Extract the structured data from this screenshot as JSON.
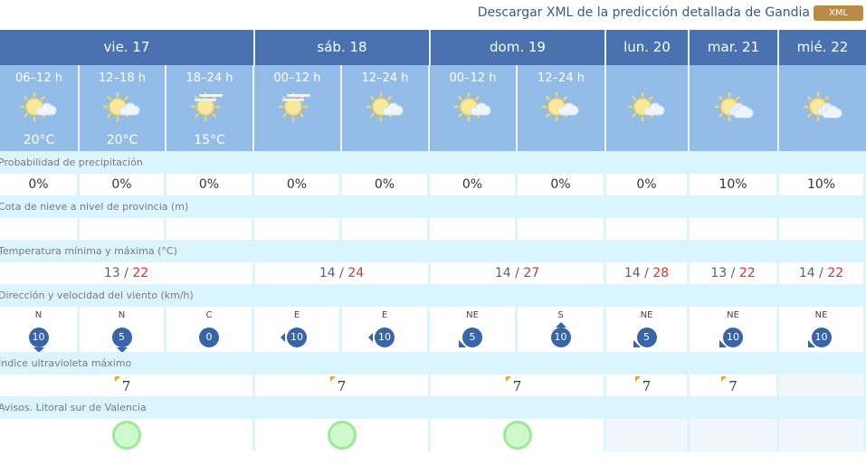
{
  "header": {
    "download_text": "Descargar XML de la predicción detallada de Gandia",
    "xml_button": "XML"
  },
  "days": [
    {
      "label": "vie. 17"
    },
    {
      "label": "sáb. 18"
    },
    {
      "label": "dom. 19"
    },
    {
      "label": "lun. 20"
    },
    {
      "label": "mar. 21"
    },
    {
      "label": "mié. 22"
    }
  ],
  "periods": [
    {
      "time": "06–12 h",
      "icon": "sun-cloud-icon",
      "temp": "20°C"
    },
    {
      "time": "12–18 h",
      "icon": "sun-cloud-icon",
      "temp": "20°C"
    },
    {
      "time": "18–24 h",
      "icon": "sun-haze-icon",
      "temp": "15°C"
    },
    {
      "time": "00–12 h",
      "icon": "sun-haze-icon",
      "temp": ""
    },
    {
      "time": "12–24 h",
      "icon": "sun-cloud-icon",
      "temp": ""
    },
    {
      "time": "00–12 h",
      "icon": "sun-cloud-icon",
      "temp": ""
    },
    {
      "time": "12–24 h",
      "icon": "sun-cloud-icon",
      "temp": ""
    },
    {
      "time": "",
      "icon": "sun-cloud-icon",
      "temp": ""
    },
    {
      "time": "",
      "icon": "sun-clouds-icon",
      "temp": ""
    },
    {
      "time": "",
      "icon": "sun-clouds-icon",
      "temp": ""
    }
  ],
  "labels": {
    "precip": "Probabilidad de precipitación",
    "snow": "Cota de nieve a nivel de provincia (m)",
    "temp": "Temperatura mínima y máxima (°C)",
    "wind": "Dirección y velocidad del viento (km/h)",
    "uv": "Índice ultravioleta máximo",
    "warnings": "Avisos. Litoral sur de Valencia"
  },
  "precip": [
    "0%",
    "0%",
    "0%",
    "0%",
    "0%",
    "0%",
    "0%",
    "0%",
    "10%",
    "10%"
  ],
  "temps": [
    {
      "min": "13",
      "max": "22"
    },
    {
      "min": "14",
      "max": "24"
    },
    {
      "min": "14",
      "max": "27"
    },
    {
      "min": "14",
      "max": "28"
    },
    {
      "min": "13",
      "max": "22"
    },
    {
      "min": "14",
      "max": "22"
    }
  ],
  "temp_sep": " / ",
  "wind": [
    {
      "dir": "N",
      "speed": "10"
    },
    {
      "dir": "N",
      "speed": "5"
    },
    {
      "dir": "C",
      "speed": "0"
    },
    {
      "dir": "E",
      "speed": "10"
    },
    {
      "dir": "E",
      "speed": "10"
    },
    {
      "dir": "NE",
      "speed": "5"
    },
    {
      "dir": "S",
      "speed": "10"
    },
    {
      "dir": "NE",
      "speed": "5"
    },
    {
      "dir": "NE",
      "speed": "10"
    },
    {
      "dir": "NE",
      "speed": "10"
    }
  ],
  "uv": [
    "7",
    "7",
    "7",
    "7",
    "7",
    ""
  ],
  "colors": {
    "day_header": "#4a72b0",
    "period_bg": "#94bce8",
    "label_bg": "#daf5fd",
    "temp_max": "#c9383a",
    "wind_badge": "#3a64a8",
    "uv_flag": "#e8a72a",
    "warning_green": "#99ec94",
    "xml_button": "#bb8a45"
  }
}
